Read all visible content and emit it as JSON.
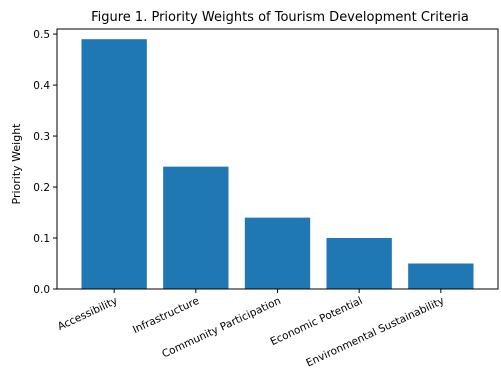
{
  "chart_data": {
    "type": "bar",
    "title": "Figure 1. Priority Weights of Tourism Development Criteria",
    "xlabel": "",
    "ylabel": "Priority Weight",
    "categories": [
      "Accessibility",
      "Infrastructure",
      "Community Participation",
      "Economic Potential",
      "Environmental Sustainability"
    ],
    "values": [
      0.49,
      0.24,
      0.14,
      0.1,
      0.05
    ],
    "ylim": [
      0,
      0.51
    ],
    "yticks": [
      "0.0",
      "0.1",
      "0.2",
      "0.3",
      "0.4",
      "0.5"
    ],
    "grid": false,
    "bar_color": "#1f77b4"
  }
}
